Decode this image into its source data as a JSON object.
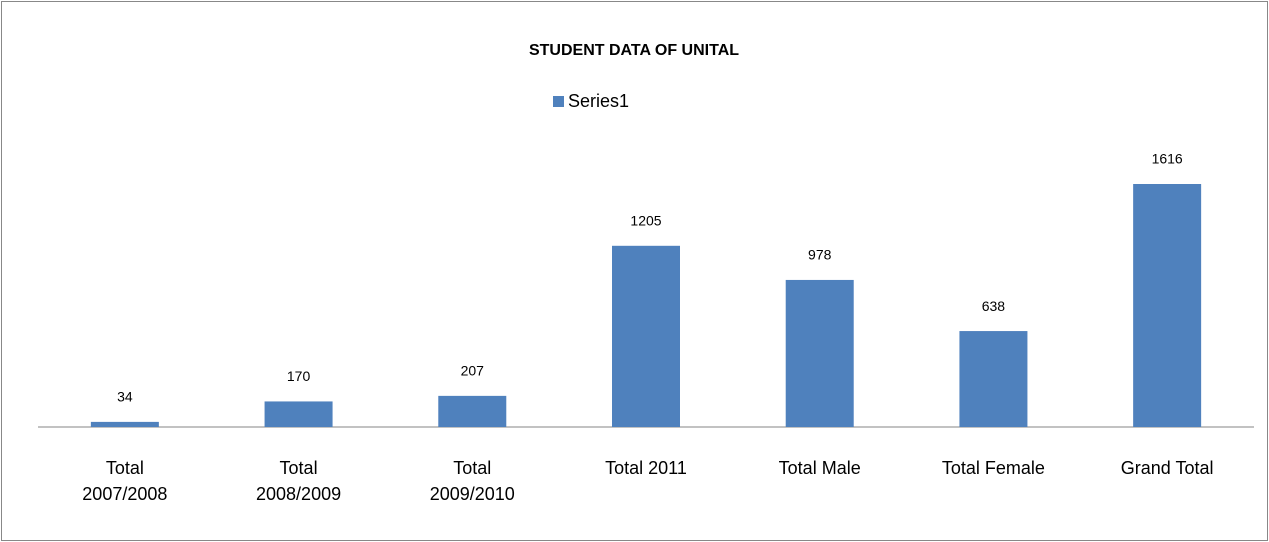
{
  "chart_data": {
    "type": "bar",
    "title": "STUDENT DATA OF UNITAL",
    "categories": [
      "Total 2007/2008",
      "Total 2008/2009",
      "Total 2009/2010",
      "Total 2011",
      "Total Male",
      "Total Female",
      "Grand Total"
    ],
    "series": [
      {
        "name": "Series1",
        "color": "#4f81bd",
        "values": [
          34,
          170,
          207,
          1205,
          978,
          638,
          1616
        ]
      }
    ],
    "legend": "top"
  }
}
